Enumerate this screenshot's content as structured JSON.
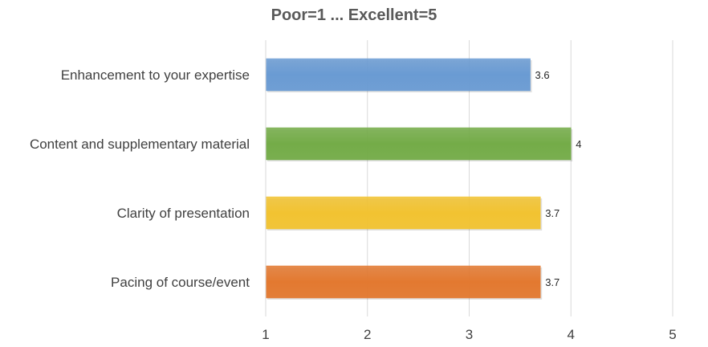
{
  "chart_data": {
    "type": "bar",
    "orientation": "horizontal",
    "title": "Poor=1 ... Excellent=5",
    "xlabel": "",
    "ylabel": "",
    "categories": [
      "Enhancement to your expertise",
      "Content and supplementary material",
      "Clarity of presentation",
      "Pacing of course/event"
    ],
    "values": [
      3.6,
      4,
      3.7,
      3.7
    ],
    "data_labels": [
      "3.6",
      "4",
      "3.7",
      "3.7"
    ],
    "colors": [
      "#6a9bd3",
      "#74ac48",
      "#f2c331",
      "#e37930"
    ],
    "xlim": [
      1,
      5
    ],
    "xticks": [
      "1",
      "2",
      "3",
      "4",
      "5"
    ],
    "grid": true,
    "legend": "none"
  }
}
